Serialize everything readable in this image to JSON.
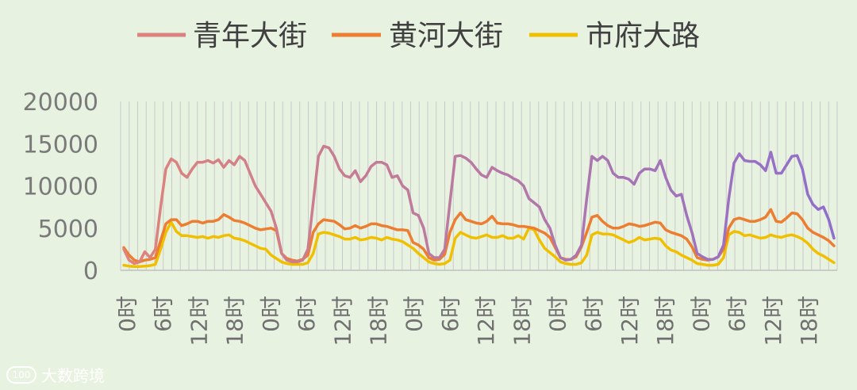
{
  "chart_data": {
    "type": "line",
    "title": "",
    "xlabel": "",
    "ylabel": "",
    "ylim": [
      0,
      20000
    ],
    "yticks": [
      "0",
      "5000",
      "10000",
      "15000",
      "20000"
    ],
    "xtick_labels": [
      "0时",
      "6时",
      "12时",
      "18时",
      "0时",
      "6时",
      "12时",
      "18时",
      "0时",
      "6时",
      "12时",
      "18时",
      "0时",
      "6时",
      "12时",
      "18时",
      "0时",
      "6时",
      "12时",
      "18时"
    ],
    "legend_position": "top",
    "series": [
      {
        "name": "青年大街",
        "color_start": "#e0837a",
        "color_end": "#8f6fcd",
        "values": [
          2500,
          1200,
          800,
          1000,
          2200,
          1500,
          2500,
          7500,
          12000,
          13200,
          12800,
          11500,
          11000,
          12000,
          12800,
          12800,
          13000,
          12700,
          13100,
          12200,
          13000,
          12500,
          13500,
          13000,
          11500,
          10000,
          9000,
          8000,
          7000,
          5000,
          2000,
          1200,
          1000,
          1000,
          1200,
          2500,
          8000,
          13500,
          14700,
          14500,
          13500,
          12000,
          11200,
          11000,
          11800,
          10500,
          11200,
          12300,
          12800,
          12800,
          12500,
          11000,
          11200,
          10000,
          9500,
          6800,
          6500,
          5000,
          2000,
          1500,
          1500,
          2500,
          8000,
          13500,
          13600,
          13300,
          12800,
          12000,
          11300,
          11000,
          12200,
          11800,
          11500,
          11300,
          10900,
          10600,
          10000,
          8500,
          8000,
          7500,
          6000,
          5000,
          3000,
          1500,
          1200,
          1300,
          1800,
          3000,
          8500,
          13500,
          13000,
          13500,
          13000,
          11500,
          11000,
          11000,
          10800,
          10200,
          11500,
          12000,
          12000,
          11800,
          13000,
          11000,
          9500,
          8800,
          9000,
          6500,
          4500,
          2000,
          1600,
          1300,
          1300,
          1600,
          3000,
          8500,
          12700,
          13800,
          13000,
          12900,
          12900,
          12500,
          11800,
          14000,
          11500,
          11500,
          12500,
          13500,
          13600,
          12000,
          9000,
          7800,
          7200,
          7500,
          6000,
          3800
        ]
      },
      {
        "name": "黄河大街",
        "color": "#ed7d31",
        "values": [
          2700,
          1800,
          1200,
          1000,
          1200,
          1300,
          1500,
          3500,
          5500,
          6000,
          6000,
          5300,
          5500,
          5800,
          5800,
          5600,
          5800,
          5800,
          6000,
          6600,
          6300,
          5900,
          5800,
          5600,
          5300,
          5000,
          4800,
          4900,
          5000,
          4700,
          2000,
          1400,
          1200,
          1100,
          1300,
          1800,
          4500,
          5500,
          6000,
          5900,
          5800,
          5400,
          4900,
          5000,
          5300,
          5000,
          5200,
          5500,
          5500,
          5300,
          5200,
          5000,
          4800,
          4800,
          4700,
          3300,
          3000,
          2500,
          1500,
          1200,
          1300,
          1900,
          4500,
          6000,
          6800,
          6000,
          5800,
          5600,
          5500,
          5800,
          6400,
          5600,
          5500,
          5500,
          5400,
          5200,
          5200,
          5100,
          5000,
          4700,
          4400,
          3900,
          2700,
          1500,
          1300,
          1300,
          1600,
          2800,
          4500,
          6300,
          6500,
          5800,
          5300,
          5000,
          5000,
          5200,
          5500,
          5400,
          5200,
          5300,
          5500,
          5700,
          5600,
          4800,
          4500,
          4300,
          4100,
          3700,
          2800,
          1500,
          1300,
          1200,
          1300,
          1600,
          2500,
          5000,
          6000,
          6200,
          6000,
          5800,
          5800,
          6000,
          6300,
          7200,
          5800,
          5700,
          6200,
          6800,
          6700,
          6000,
          5000,
          4500,
          4200,
          3900,
          3500,
          2900
        ]
      },
      {
        "name": "市府大路",
        "color": "#f0c000",
        "values": [
          600,
          500,
          450,
          450,
          500,
          550,
          700,
          2500,
          4500,
          5700,
          4600,
          4100,
          4100,
          4000,
          3900,
          4000,
          3800,
          4000,
          3900,
          4100,
          4200,
          3800,
          3700,
          3500,
          3200,
          2900,
          2600,
          2500,
          1800,
          1400,
          1000,
          800,
          700,
          700,
          700,
          900,
          2000,
          4300,
          4500,
          4400,
          4200,
          4000,
          3700,
          3700,
          3900,
          3600,
          3700,
          3900,
          3800,
          3600,
          3900,
          3700,
          3600,
          3400,
          3000,
          2600,
          2000,
          1500,
          1000,
          800,
          700,
          800,
          1200,
          3800,
          4500,
          4200,
          3900,
          3800,
          4000,
          4200,
          3900,
          3900,
          4100,
          3800,
          3800,
          4100,
          3700,
          5000,
          4800,
          3600,
          2600,
          2100,
          1600,
          1000,
          800,
          700,
          700,
          900,
          1800,
          4200,
          4500,
          4300,
          4300,
          4200,
          3900,
          3600,
          3300,
          3500,
          3900,
          3600,
          3700,
          3800,
          3700,
          2900,
          2400,
          2200,
          1800,
          1500,
          1200,
          800,
          700,
          600,
          600,
          700,
          1500,
          4200,
          4600,
          4500,
          4100,
          4200,
          4000,
          3800,
          3900,
          4200,
          4000,
          3900,
          4100,
          4200,
          4000,
          3700,
          3200,
          2500,
          2000,
          1700,
          1300,
          900
        ]
      }
    ]
  },
  "watermark": {
    "logo_text": "100",
    "label": "大数跨境"
  }
}
